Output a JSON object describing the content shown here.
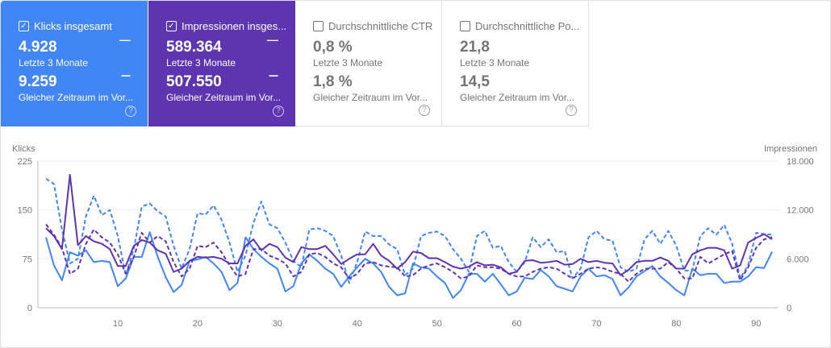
{
  "cards": [
    {
      "label": "Klicks insgesamt",
      "checked": true,
      "value": "4.928",
      "period": "Letzte 3 Monate",
      "prev_value": "9.259",
      "prev_period": "Gleicher Zeitraum im Vor...",
      "color": "#4285f4"
    },
    {
      "label": "Impressionen insges...",
      "checked": true,
      "value": "589.364",
      "period": "Letzte 3 Monate",
      "prev_value": "507.550",
      "prev_period": "Gleicher Zeitraum im Vor...",
      "color": "#5e35b1"
    },
    {
      "label": "Durchschnittliche CTR",
      "checked": false,
      "value": "0,8 %",
      "period": "Letzte 3 Monate",
      "prev_value": "1,8 %",
      "prev_period": "Gleicher Zeitraum im Vor..."
    },
    {
      "label": "Durchschnittliche Po...",
      "checked": false,
      "value": "21,8",
      "period": "Letzte 3 Monate",
      "prev_value": "14,5",
      "prev_period": "Gleicher Zeitraum im Vor..."
    }
  ],
  "icons": {
    "checkbox_checked": "✓",
    "solid_legend": "—",
    "dashed_legend": "---",
    "help": "?"
  },
  "chart_data": {
    "type": "line",
    "ylabel_left": "Klicks",
    "ylabel_right": "Impressionen",
    "y_left_ticks": [
      "0",
      "75",
      "150",
      "225"
    ],
    "y_left_range": [
      0,
      225
    ],
    "y_right_ticks": [
      "0",
      "6.000",
      "12.000",
      "18.000"
    ],
    "y_right_range": [
      0,
      18000
    ],
    "x_ticks": [
      10,
      20,
      30,
      40,
      50,
      60,
      70,
      80,
      90
    ],
    "x_range": [
      1,
      92
    ],
    "grid": true,
    "series": [
      {
        "axis": "left",
        "style": "solid",
        "color": "#4285f4",
        "values": [
          108,
          65,
          42,
          85,
          80,
          88,
          70,
          72,
          70,
          33,
          45,
          78,
          78,
          116,
          78,
          47,
          24,
          35,
          72,
          74,
          78,
          68,
          55,
          27,
          38,
          108,
          90,
          78,
          68,
          60,
          25,
          33,
          68,
          82,
          72,
          60,
          52,
          32,
          48,
          62,
          75,
          68,
          55,
          32,
          19,
          22,
          68,
          62,
          60,
          48,
          38,
          15,
          27,
          52,
          52,
          40,
          52,
          36,
          19,
          25,
          46,
          44,
          58,
          48,
          33,
          29,
          25,
          48,
          60,
          48,
          50,
          44,
          19,
          31,
          48,
          56,
          64,
          48,
          38,
          27,
          19,
          60,
          50,
          52,
          52,
          38,
          40,
          40,
          48,
          62,
          61,
          86
        ]
      },
      {
        "axis": "left",
        "style": "dashed",
        "color": "#4285f4",
        "values": [
          198,
          190,
          120,
          68,
          75,
          140,
          172,
          142,
          150,
          110,
          50,
          90,
          155,
          160,
          148,
          140,
          95,
          60,
          90,
          145,
          143,
          157,
          135,
          100,
          55,
          80,
          130,
          163,
          128,
          122,
          100,
          72,
          62,
          120,
          122,
          118,
          110,
          80,
          38,
          70,
          117,
          110,
          110,
          97,
          90,
          50,
          60,
          110,
          115,
          117,
          110,
          90,
          75,
          55,
          110,
          118,
          92,
          95,
          70,
          55,
          70,
          108,
          93,
          105,
          85,
          87,
          45,
          60,
          108,
          118,
          105,
          103,
          62,
          55,
          60,
          105,
          118,
          98,
          118,
          95,
          57,
          57,
          110,
          122,
          112,
          127,
          98,
          45,
          65,
          115,
          113,
          112
        ]
      },
      {
        "axis": "right",
        "style": "solid",
        "color": "#5e35b1",
        "values": [
          9760,
          8800,
          7200,
          16320,
          7680,
          8800,
          8160,
          7840,
          7200,
          5120,
          5120,
          7600,
          8320,
          8000,
          7040,
          6640,
          4400,
          4800,
          5760,
          6240,
          6160,
          6240,
          6000,
          5440,
          5440,
          7600,
          8400,
          7040,
          7840,
          7440,
          6160,
          5600,
          7440,
          7200,
          7200,
          7600,
          6560,
          5360,
          6000,
          6560,
          6560,
          7840,
          6400,
          5760,
          4800,
          5600,
          6880,
          6720,
          6080,
          6080,
          5600,
          5040,
          4800,
          5040,
          5600,
          5200,
          5280,
          4960,
          4160,
          4400,
          5760,
          5840,
          5520,
          5600,
          5760,
          5280,
          5360,
          6000,
          5600,
          5760,
          5520,
          5440,
          4000,
          4640,
          5600,
          5760,
          5760,
          6160,
          5760,
          4800,
          4800,
          6560,
          7040,
          7360,
          7360,
          7040,
          4800,
          5200,
          8000,
          8560,
          9040,
          8400
        ]
      },
      {
        "axis": "right",
        "style": "dashed",
        "color": "#5e35b1",
        "values": [
          10240,
          8960,
          7360,
          4160,
          4800,
          7840,
          9600,
          8640,
          8000,
          6560,
          4160,
          6240,
          9200,
          8000,
          8800,
          8160,
          5600,
          3840,
          4800,
          7600,
          7440,
          8000,
          6800,
          5200,
          3840,
          4160,
          7200,
          7200,
          6400,
          6000,
          5440,
          3840,
          4400,
          6560,
          6720,
          6240,
          5440,
          4960,
          3600,
          4160,
          5440,
          5600,
          5200,
          5040,
          4960,
          3840,
          4000,
          4800,
          5200,
          5440,
          4960,
          4400,
          3600,
          3840,
          5200,
          4960,
          4960,
          4800,
          4160,
          3840,
          3840,
          4400,
          4800,
          4960,
          4800,
          4160,
          3600,
          4160,
          4800,
          4960,
          4800,
          4400,
          4160,
          3200,
          4160,
          4800,
          4800,
          4800,
          5600,
          4800,
          3600,
          3600,
          6240,
          5440,
          6000,
          6560,
          6960,
          3360,
          4960,
          7360,
          8400,
          8640
        ]
      }
    ]
  }
}
